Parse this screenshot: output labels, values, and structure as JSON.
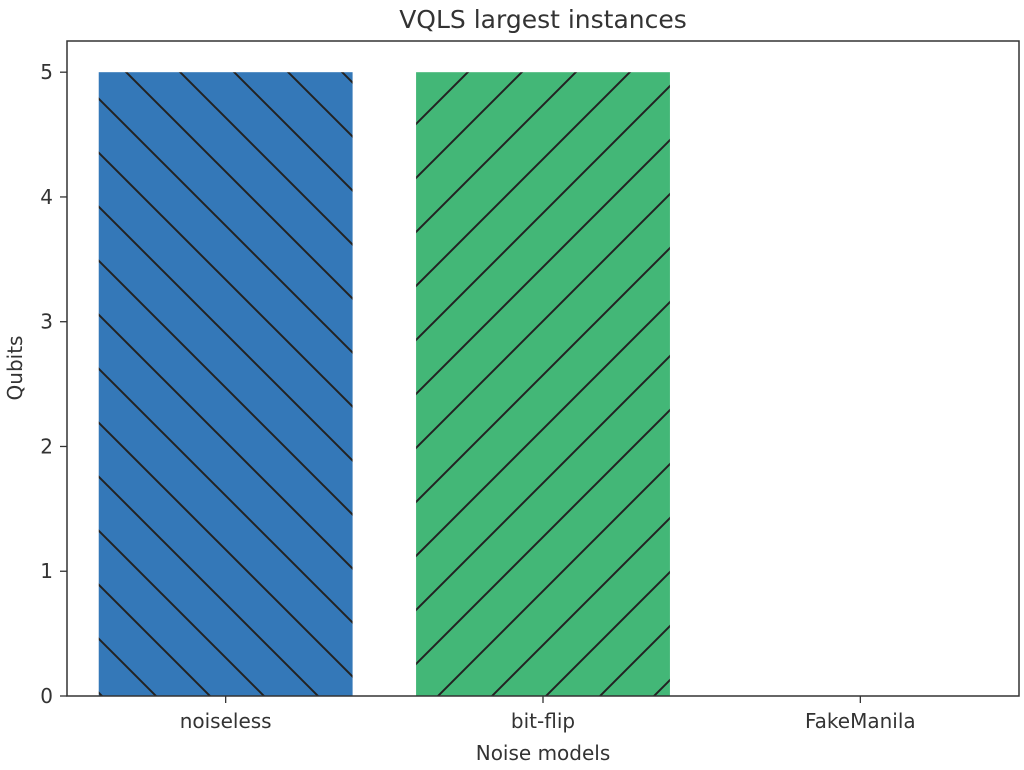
{
  "chart_data": {
    "type": "bar",
    "title": "VQLS largest instances",
    "xlabel": "Noise models",
    "ylabel": "Qubits",
    "categories": [
      "noiseless",
      "bit-flip",
      "FakeManila"
    ],
    "values": [
      5,
      5,
      0
    ],
    "ylim": [
      0,
      5.25
    ],
    "yticks": [
      0,
      1,
      2,
      3,
      4,
      5
    ],
    "colors": [
      "#3478b8",
      "#43b777",
      "#ff7f0e"
    ],
    "hatches": [
      "backslash",
      "slash",
      "none"
    ],
    "grid": false
  }
}
